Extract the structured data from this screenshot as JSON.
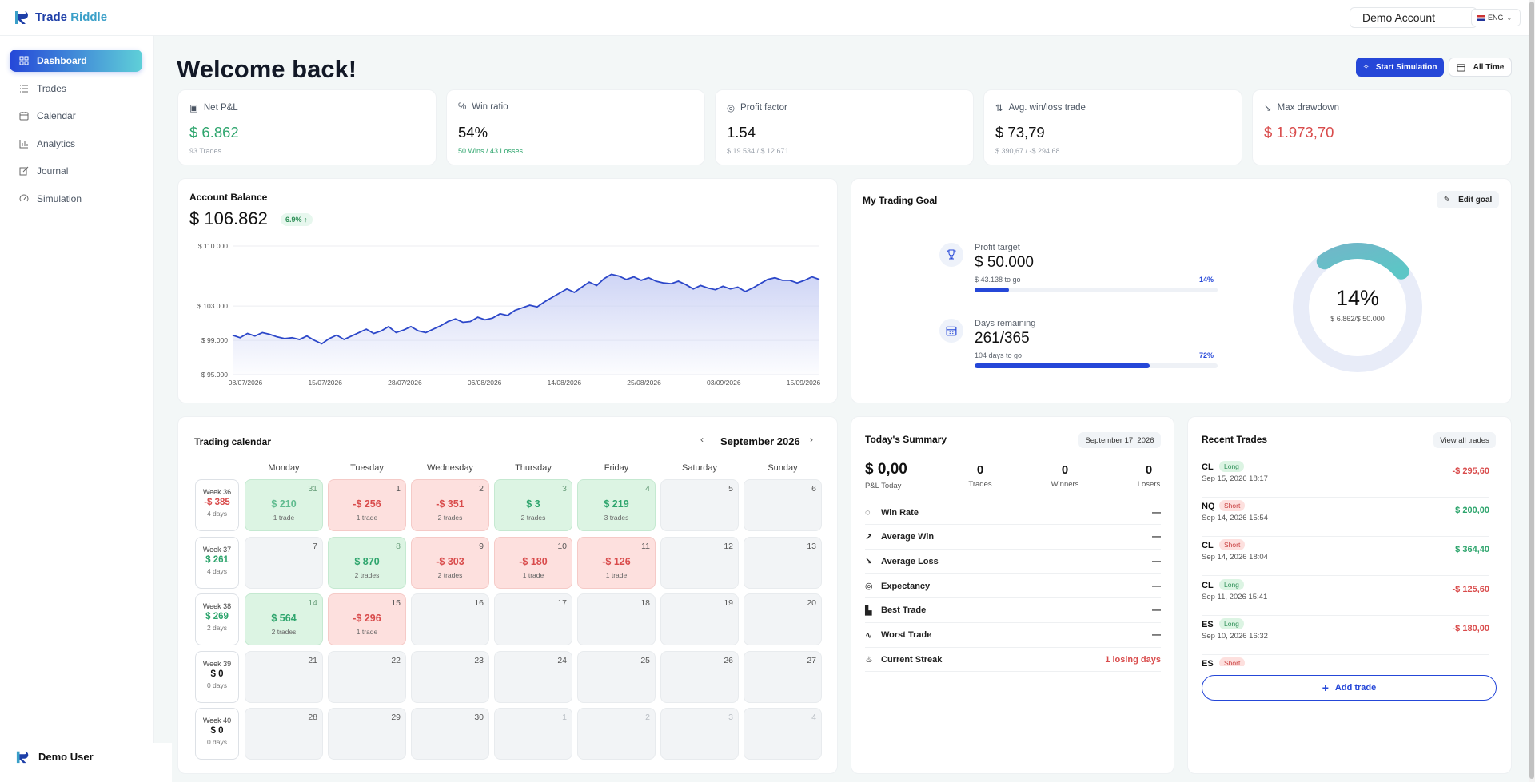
{
  "app": {
    "logo_part1": "Trade",
    "logo_part2": " Riddle",
    "account": "Demo Account",
    "language": "ENG"
  },
  "sidebar": {
    "items": [
      {
        "label": "Dashboard",
        "icon": "dashboard-icon"
      },
      {
        "label": "Trades",
        "icon": "list-icon"
      },
      {
        "label": "Calendar",
        "icon": "calendar-icon"
      },
      {
        "label": "Analytics",
        "icon": "bar-chart-icon"
      },
      {
        "label": "Journal",
        "icon": "journal-icon"
      },
      {
        "label": "Simulation",
        "icon": "simulation-icon"
      }
    ],
    "user": "Demo User"
  },
  "header": {
    "title": "Welcome back!",
    "start_simulation": "Start Simulation",
    "all_time": "All Time"
  },
  "kpis": [
    {
      "label": "Net P&L",
      "value": "$ 6.862",
      "sub": "93 Trades",
      "icon": "wallet-icon"
    },
    {
      "label": "Win ratio",
      "value": "54%",
      "sub": "50 Wins / 43 Losses",
      "icon": "percent-icon"
    },
    {
      "label": "Profit factor",
      "value": "1.54",
      "sub": "$ 19.534 / $ 12.671",
      "icon": "target-icon"
    },
    {
      "label": "Avg. win/loss trade",
      "value": "$ 73,79",
      "sub": "$ 390,67 / -$ 294,68",
      "icon": "arrows-icon"
    },
    {
      "label": "Max drawdown",
      "value": "$ 1.973,70",
      "sub": "",
      "icon": "trend-down-icon"
    }
  ],
  "balance": {
    "title": "Account Balance",
    "value": "$ 106.862",
    "change": "6.9% ↑"
  },
  "chart_data": {
    "type": "area",
    "title": "Account Balance",
    "xlabel": "",
    "ylabel": "",
    "x_ticks": [
      "08/07/2026",
      "15/07/2026",
      "28/07/2026",
      "06/08/2026",
      "14/08/2026",
      "25/08/2026",
      "03/09/2026",
      "15/09/2026"
    ],
    "y_ticks": [
      "$ 110.000",
      "$ 103.000",
      "$ 99.000",
      "$ 95.000"
    ],
    "y_tick_values": [
      110000,
      103000,
      99000,
      95000
    ],
    "ylim": [
      95000,
      110000
    ],
    "series": [
      {
        "values": [
          99600,
          99300,
          99800,
          99500,
          99900,
          99700,
          99400,
          99200,
          99300,
          99100,
          99500,
          99000,
          98600,
          99200,
          99600,
          99100,
          99500,
          99900,
          100300,
          99800,
          100100,
          100600,
          99900,
          100200,
          100600,
          100100,
          99900,
          100300,
          100700,
          101200,
          101500,
          101100,
          101200,
          101700,
          101400,
          101600,
          102100,
          101900,
          102500,
          102800,
          103100,
          102900,
          103500,
          104000,
          104500,
          105000,
          104600,
          105200,
          105800,
          105400,
          106200,
          106700,
          106500,
          106100,
          106400,
          106000,
          106300,
          105900,
          105700,
          105600,
          105900,
          105500,
          105000,
          105400,
          105100,
          104900,
          105300,
          105000,
          105200,
          104700,
          105100,
          105600,
          106100,
          106300,
          106000,
          106000,
          105700,
          106000,
          106400,
          106100
        ]
      }
    ],
    "line_color": "#2c47c9",
    "fill_color": "#c9d0f4"
  },
  "goal": {
    "title": "My Trading Goal",
    "edit": "Edit goal",
    "profit_label": "Profit target",
    "profit_value": "$ 50.000",
    "profit_to_go": "$ 43.138 to go",
    "profit_pct": "14%",
    "profit_fraction": 0.14,
    "days_label": "Days remaining",
    "days_value": "261/365",
    "days_to_go": "104 days to go",
    "days_pct": "72%",
    "days_fraction": 0.72,
    "ring_pct": "14%",
    "ring_sub": "$ 6.862/$ 50.000",
    "ring_fraction": 0.14
  },
  "calendar": {
    "title": "Trading calendar",
    "month": "September 2026",
    "headers": [
      "Monday",
      "Tuesday",
      "Wednesday",
      "Thursday",
      "Friday",
      "Saturday",
      "Sunday"
    ],
    "weeks": [
      {
        "label": "Week 36",
        "value": "-$ 385",
        "days": "4 days",
        "tone": "red"
      },
      {
        "label": "Week 37",
        "value": "$ 261",
        "days": "4 days",
        "tone": "green"
      },
      {
        "label": "Week 38",
        "value": "$ 269",
        "days": "2 days",
        "tone": "green"
      },
      {
        "label": "Week 39",
        "value": "$ 0",
        "days": "0 days",
        "tone": ""
      },
      {
        "label": "Week 40",
        "value": "$ 0",
        "days": "0 days",
        "tone": ""
      }
    ],
    "days": [
      [
        {
          "n": "31",
          "v": "$ 210",
          "t": "1 trade",
          "s": "win",
          "dim": true
        },
        {
          "n": "1",
          "v": "-$ 256",
          "t": "1 trade",
          "s": "loss"
        },
        {
          "n": "2",
          "v": "-$ 351",
          "t": "2 trades",
          "s": "loss"
        },
        {
          "n": "3",
          "v": "$ 3",
          "t": "2 trades",
          "s": "win"
        },
        {
          "n": "4",
          "v": "$ 219",
          "t": "3 trades",
          "s": "win"
        },
        {
          "n": "5"
        },
        {
          "n": "6"
        }
      ],
      [
        {
          "n": "7"
        },
        {
          "n": "8",
          "v": "$ 870",
          "t": "2 trades",
          "s": "win"
        },
        {
          "n": "9",
          "v": "-$ 303",
          "t": "2 trades",
          "s": "loss"
        },
        {
          "n": "10",
          "v": "-$ 180",
          "t": "1 trade",
          "s": "loss"
        },
        {
          "n": "11",
          "v": "-$ 126",
          "t": "1 trade",
          "s": "loss"
        },
        {
          "n": "12"
        },
        {
          "n": "13"
        }
      ],
      [
        {
          "n": "14",
          "v": "$ 564",
          "t": "2 trades",
          "s": "win"
        },
        {
          "n": "15",
          "v": "-$ 296",
          "t": "1 trade",
          "s": "loss"
        },
        {
          "n": "16"
        },
        {
          "n": "17"
        },
        {
          "n": "18"
        },
        {
          "n": "19"
        },
        {
          "n": "20"
        }
      ],
      [
        {
          "n": "21"
        },
        {
          "n": "22"
        },
        {
          "n": "23"
        },
        {
          "n": "24"
        },
        {
          "n": "25"
        },
        {
          "n": "26"
        },
        {
          "n": "27"
        }
      ],
      [
        {
          "n": "28"
        },
        {
          "n": "29"
        },
        {
          "n": "30"
        },
        {
          "n": "1",
          "dim": true
        },
        {
          "n": "2",
          "dim": true
        },
        {
          "n": "3",
          "dim": true
        },
        {
          "n": "4",
          "dim": true
        }
      ]
    ]
  },
  "summary": {
    "title": "Today's Summary",
    "date": "September 17, 2026",
    "pnl": "$ 0,00",
    "pnl_label": "P&L Today",
    "stats": [
      {
        "n": "0",
        "l": "Trades"
      },
      {
        "n": "0",
        "l": "Winners"
      },
      {
        "n": "0",
        "l": "Losers"
      }
    ],
    "metrics": [
      {
        "label": "Win Rate",
        "value": "—",
        "icon": "crosshair-icon"
      },
      {
        "label": "Average Win",
        "value": "—",
        "icon": "trend-up-icon"
      },
      {
        "label": "Average Loss",
        "value": "—",
        "icon": "trend-down-icon"
      },
      {
        "label": "Expectancy",
        "value": "—",
        "icon": "target-icon"
      },
      {
        "label": "Best Trade",
        "value": "—",
        "icon": "chart-icon"
      },
      {
        "label": "Worst Trade",
        "value": "—",
        "icon": "pulse-icon"
      },
      {
        "label": "Current Streak",
        "value": "1 losing days",
        "icon": "flame-icon",
        "red": true
      }
    ]
  },
  "recent": {
    "title": "Recent Trades",
    "view_all": "View all trades",
    "add": "Add trade",
    "trades": [
      {
        "sym": "CL",
        "side": "Long",
        "date": "Sep 15, 2026 18:17",
        "pnl": "-$ 295,60",
        "win": false
      },
      {
        "sym": "NQ",
        "side": "Short",
        "date": "Sep 14, 2026 15:54",
        "pnl": "$ 200,00",
        "win": true
      },
      {
        "sym": "CL",
        "side": "Short",
        "date": "Sep 14, 2026 18:04",
        "pnl": "$ 364,40",
        "win": true
      },
      {
        "sym": "CL",
        "side": "Long",
        "date": "Sep 11, 2026 15:41",
        "pnl": "-$ 125,60",
        "win": false
      },
      {
        "sym": "ES",
        "side": "Long",
        "date": "Sep 10, 2026 16:32",
        "pnl": "-$ 180,00",
        "win": false
      },
      {
        "sym": "ES",
        "side": "Short",
        "date": "",
        "pnl": "",
        "win": false
      }
    ]
  }
}
